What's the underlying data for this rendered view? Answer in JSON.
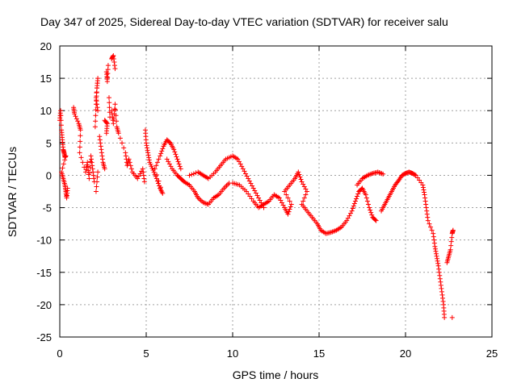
{
  "chart_data": {
    "type": "scatter",
    "title": "Day 347 of 2025, Sidereal Day-to-day VTEC variation (SDTVAR) for receiver salu",
    "xlabel": "GPS time / hours",
    "ylabel": "SDTVAR / TECUs",
    "xlim": [
      0,
      25
    ],
    "ylim": [
      -25,
      20
    ],
    "xticks": [
      0,
      5,
      10,
      15,
      20,
      25
    ],
    "yticks": [
      -25,
      -20,
      -15,
      -10,
      -5,
      0,
      5,
      10,
      15,
      20
    ],
    "grid": true,
    "marker": "+",
    "color": "#ff0000",
    "series": [
      {
        "name": "SDTVAR",
        "points": [
          [
            0.0,
            8.5
          ],
          [
            0.05,
            10.0
          ],
          [
            0.1,
            7.0
          ],
          [
            0.15,
            5.5
          ],
          [
            0.2,
            4.0
          ],
          [
            0.25,
            3.5
          ],
          [
            0.3,
            2.8
          ],
          [
            0.35,
            3.0
          ],
          [
            0.1,
            0.5
          ],
          [
            0.2,
            -0.5
          ],
          [
            0.3,
            -1.5
          ],
          [
            0.35,
            -2.5
          ],
          [
            0.4,
            -3.5
          ],
          [
            0.45,
            -2.0
          ],
          [
            0.8,
            10.5
          ],
          [
            0.85,
            9.5
          ],
          [
            1.1,
            8.0
          ],
          [
            1.2,
            7.0
          ],
          [
            1.15,
            3.5
          ],
          [
            1.5,
            0.5
          ],
          [
            1.6,
            2.0
          ],
          [
            1.7,
            -0.5
          ],
          [
            1.8,
            3.0
          ],
          [
            1.9,
            1.0
          ],
          [
            2.0,
            -1.0
          ],
          [
            2.05,
            7.5
          ],
          [
            2.1,
            11.0
          ],
          [
            2.15,
            13.5
          ],
          [
            2.2,
            15.0
          ],
          [
            2.1,
            12.0
          ],
          [
            2.2,
            10.0
          ],
          [
            2.1,
            -2.5
          ],
          [
            2.2,
            0.5
          ],
          [
            2.3,
            6.0
          ],
          [
            2.4,
            4.0
          ],
          [
            2.5,
            2.0
          ],
          [
            2.6,
            1.0
          ],
          [
            2.7,
            6.5
          ],
          [
            2.75,
            8.0
          ],
          [
            2.6,
            8.5
          ],
          [
            2.7,
            16.0
          ],
          [
            2.75,
            14.5
          ],
          [
            2.8,
            17.0
          ],
          [
            2.85,
            12.0
          ],
          [
            2.9,
            9.0
          ],
          [
            3.0,
            18.0
          ],
          [
            3.1,
            18.5
          ],
          [
            3.2,
            16.5
          ],
          [
            3.0,
            10.0
          ],
          [
            3.1,
            8.0
          ],
          [
            3.2,
            11.0
          ],
          [
            3.3,
            7.5
          ],
          [
            3.4,
            6.5
          ],
          [
            3.8,
            3.5
          ],
          [
            3.9,
            1.5
          ],
          [
            4.0,
            2.5
          ],
          [
            4.2,
            0.5
          ],
          [
            4.5,
            -0.5
          ],
          [
            4.8,
            1.0
          ],
          [
            4.9,
            -1.0
          ],
          [
            4.95,
            7.0
          ],
          [
            5.0,
            5.0
          ],
          [
            5.1,
            3.5
          ],
          [
            5.2,
            2.0
          ],
          [
            5.4,
            0.8
          ],
          [
            5.6,
            -0.5
          ],
          [
            5.8,
            -2.0
          ],
          [
            5.95,
            -2.8
          ],
          [
            5.5,
            1.0
          ],
          [
            5.8,
            3.0
          ],
          [
            6.0,
            4.5
          ],
          [
            6.2,
            5.5
          ],
          [
            6.4,
            5.0
          ],
          [
            6.6,
            4.0
          ],
          [
            6.8,
            2.5
          ],
          [
            7.0,
            1.0
          ],
          [
            6.2,
            2.5
          ],
          [
            6.5,
            1.0
          ],
          [
            6.8,
            0.0
          ],
          [
            7.0,
            -0.5
          ],
          [
            7.2,
            -1.0
          ],
          [
            7.5,
            -1.5
          ],
          [
            7.8,
            -2.5
          ],
          [
            8.0,
            -3.5
          ],
          [
            8.3,
            -4.2
          ],
          [
            8.6,
            -4.5
          ],
          [
            8.9,
            -3.5
          ],
          [
            9.2,
            -3.0
          ],
          [
            9.5,
            -2.0
          ],
          [
            9.8,
            -1.2
          ],
          [
            7.5,
            0.0
          ],
          [
            8.0,
            0.5
          ],
          [
            8.3,
            0.0
          ],
          [
            8.6,
            -0.5
          ],
          [
            9.0,
            0.5
          ],
          [
            9.3,
            1.5
          ],
          [
            9.6,
            2.5
          ],
          [
            10.0,
            3.0
          ],
          [
            10.3,
            2.5
          ],
          [
            10.6,
            1.0
          ],
          [
            10.9,
            -0.5
          ],
          [
            11.2,
            -2.0
          ],
          [
            11.5,
            -3.5
          ],
          [
            11.8,
            -5.0
          ],
          [
            10.0,
            -1.2
          ],
          [
            10.4,
            -1.5
          ],
          [
            10.8,
            -2.5
          ],
          [
            11.2,
            -4.0
          ],
          [
            11.5,
            -5.0
          ],
          [
            11.8,
            -4.5
          ],
          [
            12.1,
            -4.0
          ],
          [
            12.4,
            -3.0
          ],
          [
            12.7,
            -3.5
          ],
          [
            13.0,
            -5.0
          ],
          [
            13.2,
            -6.0
          ],
          [
            13.4,
            -4.5
          ],
          [
            13.0,
            -2.5
          ],
          [
            13.3,
            -1.5
          ],
          [
            13.6,
            -0.5
          ],
          [
            13.8,
            0.5
          ],
          [
            14.0,
            -1.0
          ],
          [
            14.3,
            -2.5
          ],
          [
            14.0,
            -4.5
          ],
          [
            14.3,
            -5.5
          ],
          [
            14.6,
            -6.5
          ],
          [
            14.9,
            -7.5
          ],
          [
            15.1,
            -8.5
          ],
          [
            15.4,
            -9.0
          ],
          [
            15.7,
            -8.8
          ],
          [
            16.0,
            -8.5
          ],
          [
            16.3,
            -8.0
          ],
          [
            16.6,
            -7.0
          ],
          [
            16.9,
            -5.5
          ],
          [
            17.1,
            -4.0
          ],
          [
            17.3,
            -2.5
          ],
          [
            17.5,
            -2.0
          ],
          [
            17.7,
            -3.0
          ],
          [
            17.9,
            -5.0
          ],
          [
            18.1,
            -6.5
          ],
          [
            18.3,
            -7.0
          ],
          [
            17.2,
            -1.5
          ],
          [
            17.5,
            -0.5
          ],
          [
            17.8,
            0.0
          ],
          [
            18.1,
            0.3
          ],
          [
            18.4,
            0.5
          ],
          [
            18.7,
            0.2
          ],
          [
            18.6,
            -5.5
          ],
          [
            18.8,
            -4.5
          ],
          [
            19.0,
            -3.5
          ],
          [
            19.2,
            -2.5
          ],
          [
            19.4,
            -1.5
          ],
          [
            19.6,
            -0.8
          ],
          [
            19.8,
            0.0
          ],
          [
            20.0,
            0.3
          ],
          [
            20.2,
            0.5
          ],
          [
            20.4,
            0.3
          ],
          [
            20.6,
            0.0
          ],
          [
            21.0,
            -1.5
          ],
          [
            21.1,
            -3.0
          ],
          [
            21.2,
            -5.0
          ],
          [
            21.3,
            -7.0
          ],
          [
            21.6,
            -9.0
          ],
          [
            21.7,
            -11.0
          ],
          [
            21.8,
            -12.5
          ],
          [
            21.9,
            -14.0
          ],
          [
            22.0,
            -16.0
          ],
          [
            22.1,
            -18.0
          ],
          [
            22.2,
            -20.0
          ],
          [
            22.25,
            -22.0
          ],
          [
            22.4,
            -13.5
          ],
          [
            22.5,
            -12.5
          ],
          [
            22.6,
            -11.5
          ],
          [
            22.7,
            -9.0
          ],
          [
            22.75,
            -8.5
          ],
          [
            22.7,
            -22.0
          ]
        ]
      }
    ]
  }
}
